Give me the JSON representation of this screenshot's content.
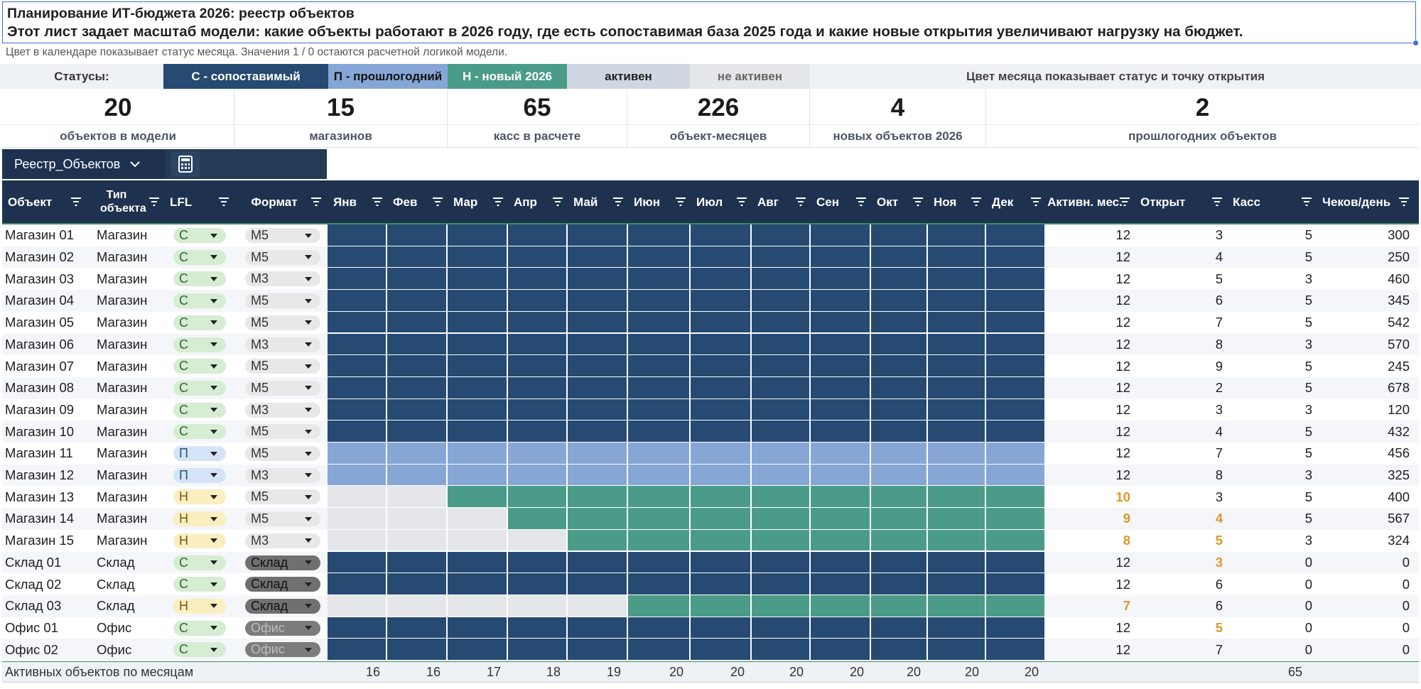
{
  "title": "Планирование ИТ-бюджета 2026: реестр объектов",
  "subtitle": "Этот лист задает масштаб модели: какие объекты работают в 2026 году, где есть сопоставимая база 2025 года и какие новые открытия увеличивают нагрузку на бюджет.",
  "note": "Цвет в календаре показывает статус месяца. Значения 1 / 0 остаются расчетной логикой модели.",
  "legend": {
    "label": "Статусы:",
    "c": "С - сопоставимый",
    "p": "П - прошлогодний",
    "n": "Н - новый 2026",
    "active": "активен",
    "inactive": "не активен",
    "note": "Цвет месяца показывает статус и точку открытия"
  },
  "colors": {
    "comparable": "#264a72",
    "lastyear": "#86a7d6",
    "new": "#4a9c88",
    "inactive": "#e4e6e9",
    "highlight": "#e0962a",
    "header": "#1e3250"
  },
  "kpis": [
    {
      "value": "20",
      "label": "объектов в модели"
    },
    {
      "value": "15",
      "label": "магазинов"
    },
    {
      "value": "65",
      "label": "касс в расчете"
    },
    {
      "value": "226",
      "label": "объект-месяцев"
    },
    {
      "value": "4",
      "label": "новых объектов 2026"
    },
    {
      "value": "2",
      "label": "прошлогодних объектов"
    }
  ],
  "sheet_tab": {
    "name": "Реестр_Объектов",
    "chevron_icon": "chevron-down-icon",
    "calc_icon": "calculator-icon"
  },
  "headers": {
    "object": "Объект",
    "type": "Тип объекта",
    "lfl": "LFL",
    "format": "Формат",
    "months": [
      "Янв",
      "Фев",
      "Мар",
      "Апр",
      "Май",
      "Июн",
      "Июл",
      "Авг",
      "Сен",
      "Окт",
      "Ноя",
      "Дек"
    ],
    "active": "Активн. мес.",
    "open": "Открыт",
    "kass": "Касс",
    "checks": "Чеков/день"
  },
  "rows": [
    {
      "name": "Магазин 01",
      "type": "Магазин",
      "lfl": "С",
      "format": "М5",
      "status": "c",
      "open_month": 1,
      "active": "12",
      "opened": "3",
      "kass": "5",
      "checks": "300"
    },
    {
      "name": "Магазин 02",
      "type": "Магазин",
      "lfl": "С",
      "format": "М5",
      "status": "c",
      "open_month": 1,
      "active": "12",
      "opened": "4",
      "kass": "5",
      "checks": "250"
    },
    {
      "name": "Магазин 03",
      "type": "Магазин",
      "lfl": "С",
      "format": "М3",
      "status": "c",
      "open_month": 1,
      "active": "12",
      "opened": "5",
      "kass": "3",
      "checks": "460"
    },
    {
      "name": "Магазин 04",
      "type": "Магазин",
      "lfl": "С",
      "format": "М5",
      "status": "c",
      "open_month": 1,
      "active": "12",
      "opened": "6",
      "kass": "5",
      "checks": "345"
    },
    {
      "name": "Магазин 05",
      "type": "Магазин",
      "lfl": "С",
      "format": "М5",
      "status": "c",
      "open_month": 1,
      "active": "12",
      "opened": "7",
      "kass": "5",
      "checks": "542"
    },
    {
      "name": "Магазин 06",
      "type": "Магазин",
      "lfl": "С",
      "format": "М3",
      "status": "c",
      "open_month": 1,
      "active": "12",
      "opened": "8",
      "kass": "3",
      "checks": "570"
    },
    {
      "name": "Магазин 07",
      "type": "Магазин",
      "lfl": "С",
      "format": "М5",
      "status": "c",
      "open_month": 1,
      "active": "12",
      "opened": "9",
      "kass": "5",
      "checks": "245"
    },
    {
      "name": "Магазин 08",
      "type": "Магазин",
      "lfl": "С",
      "format": "М5",
      "status": "c",
      "open_month": 1,
      "active": "12",
      "opened": "2",
      "kass": "5",
      "checks": "678"
    },
    {
      "name": "Магазин 09",
      "type": "Магазин",
      "lfl": "С",
      "format": "М3",
      "status": "c",
      "open_month": 1,
      "active": "12",
      "opened": "3",
      "kass": "3",
      "checks": "120"
    },
    {
      "name": "Магазин 10",
      "type": "Магазин",
      "lfl": "С",
      "format": "М5",
      "status": "c",
      "open_month": 1,
      "active": "12",
      "opened": "4",
      "kass": "5",
      "checks": "432"
    },
    {
      "name": "Магазин 11",
      "type": "Магазин",
      "lfl": "П",
      "format": "М5",
      "status": "p",
      "open_month": 1,
      "active": "12",
      "opened": "7",
      "kass": "5",
      "checks": "456"
    },
    {
      "name": "Магазин 12",
      "type": "Магазин",
      "lfl": "П",
      "format": "М3",
      "status": "p",
      "open_month": 1,
      "active": "12",
      "opened": "8",
      "kass": "3",
      "checks": "325"
    },
    {
      "name": "Магазин 13",
      "type": "Магазин",
      "lfl": "Н",
      "format": "М5",
      "status": "n",
      "open_month": 3,
      "active": "10",
      "opened": "3",
      "kass": "5",
      "checks": "400",
      "hl_active": true
    },
    {
      "name": "Магазин 14",
      "type": "Магазин",
      "lfl": "Н",
      "format": "М5",
      "status": "n",
      "open_month": 4,
      "active": "9",
      "opened": "4",
      "kass": "5",
      "checks": "567",
      "hl_active": true,
      "hl_opened": true
    },
    {
      "name": "Магазин 15",
      "type": "Магазин",
      "lfl": "Н",
      "format": "М3",
      "status": "n",
      "open_month": 5,
      "active": "8",
      "opened": "5",
      "kass": "3",
      "checks": "324",
      "hl_active": true,
      "hl_opened": true
    },
    {
      "name": "Склад 01",
      "type": "Склад",
      "lfl": "С",
      "format": "Склад",
      "status": "c",
      "open_month": 1,
      "active": "12",
      "opened": "3",
      "kass": "0",
      "checks": "0",
      "hl_opened": true
    },
    {
      "name": "Склад 02",
      "type": "Склад",
      "lfl": "С",
      "format": "Склад",
      "status": "c",
      "open_month": 1,
      "active": "12",
      "opened": "6",
      "kass": "0",
      "checks": "0"
    },
    {
      "name": "Склад 03",
      "type": "Склад",
      "lfl": "Н",
      "format": "Склад",
      "status": "n",
      "open_month": 6,
      "active": "7",
      "opened": "6",
      "kass": "0",
      "checks": "0",
      "hl_active": true
    },
    {
      "name": "Офис 01",
      "type": "Офис",
      "lfl": "С",
      "format": "Офис",
      "status": "c",
      "open_month": 1,
      "active": "12",
      "opened": "5",
      "kass": "0",
      "checks": "0",
      "hl_opened": true
    },
    {
      "name": "Офис 02",
      "type": "Офис",
      "lfl": "С",
      "format": "Офис",
      "status": "c",
      "open_month": 1,
      "active": "12",
      "opened": "7",
      "kass": "0",
      "checks": "0"
    }
  ],
  "footer": {
    "label": "Активных объектов по месяцам",
    "month_totals": [
      "16",
      "16",
      "17",
      "18",
      "19",
      "20",
      "20",
      "20",
      "20",
      "20",
      "20",
      "20"
    ],
    "kass_total": "65"
  }
}
